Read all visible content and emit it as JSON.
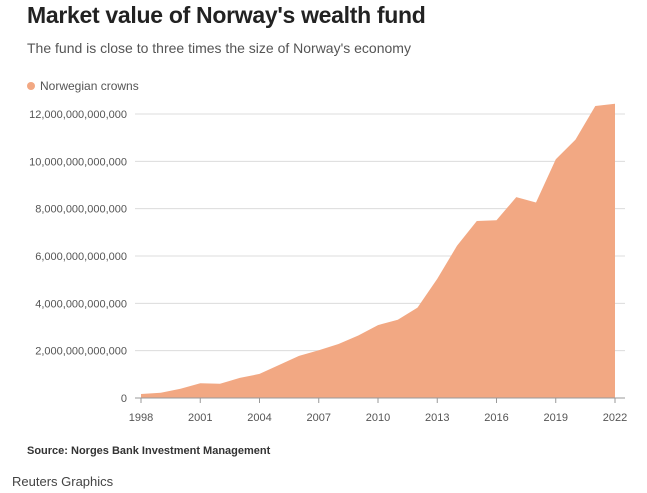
{
  "colors": {
    "area": "#f2a883",
    "grid": "#dcdcdc",
    "axis": "#999999"
  },
  "header": {
    "title": "Market value of Norway's wealth fund",
    "subtitle": "The fund is close to three times the size of Norway's economy"
  },
  "legend": {
    "label": "Norwegian crowns"
  },
  "footer": {
    "source": "Source: Norges Bank Investment Management",
    "credit": "Reuters Graphics"
  },
  "chart_data": {
    "type": "area",
    "title": "Market value of Norway's wealth fund",
    "subtitle": "The fund is close to three times the size of Norway's economy",
    "xlabel": "",
    "ylabel": "",
    "xlim": [
      1998,
      2022
    ],
    "ylim": [
      0,
      12000000000000
    ],
    "yticks": [
      0,
      2000000000000,
      4000000000000,
      6000000000000,
      8000000000000,
      10000000000000,
      12000000000000
    ],
    "ytick_labels": [
      "0",
      "2,000,000,000,000",
      "4,000,000,000,000",
      "6,000,000,000,000",
      "8,000,000,000,000",
      "10,000,000,000,000",
      "12,000,000,000,000"
    ],
    "xticks": [
      1998,
      2001,
      2004,
      2007,
      2010,
      2013,
      2016,
      2019,
      2022
    ],
    "xtick_labels": [
      "1998",
      "2001",
      "2004",
      "2007",
      "2010",
      "2013",
      "2016",
      "2019",
      "2022"
    ],
    "grid": true,
    "legend": "top-left",
    "series": [
      {
        "name": "Norwegian crowns",
        "x": [
          1998,
          1999,
          2000,
          2001,
          2002,
          2003,
          2004,
          2005,
          2006,
          2007,
          2008,
          2009,
          2010,
          2011,
          2012,
          2013,
          2014,
          2015,
          2016,
          2017,
          2018,
          2019,
          2020,
          2021,
          2022
        ],
        "values": [
          170000000000,
          220000000000,
          390000000000,
          620000000000,
          600000000000,
          850000000000,
          1020000000000,
          1400000000000,
          1780000000000,
          2020000000000,
          2280000000000,
          2640000000000,
          3080000000000,
          3310000000000,
          3820000000000,
          5040000000000,
          6430000000000,
          7480000000000,
          7510000000000,
          8490000000000,
          8260000000000,
          10090000000000,
          10920000000000,
          12340000000000,
          12430000000000
        ]
      }
    ]
  }
}
